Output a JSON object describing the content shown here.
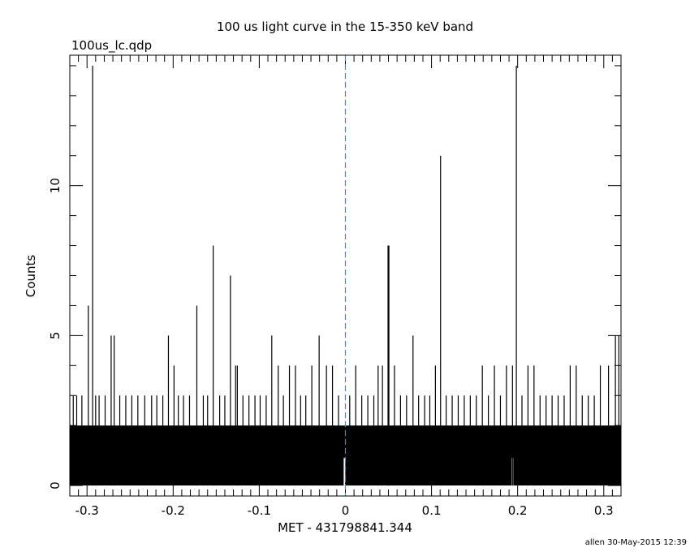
{
  "title": "100 us light curve in the 15-350 keV band",
  "file_label": "100us_lc.qdp",
  "footer": "allen 30-May-2015 12:39",
  "colors": {
    "axes": "#000000",
    "data": "#000000",
    "trigger_line": "#3a8fb8"
  },
  "chart_data": {
    "type": "bar",
    "xlabel": "MET - 431798841.344",
    "ylabel": "Counts",
    "xlim": [
      -0.32,
      0.32
    ],
    "ylim": [
      -0.35,
      14.35
    ],
    "x_ticks": [
      {
        "v": -0.3,
        "label": "-0.3"
      },
      {
        "v": -0.2,
        "label": "-0.2"
      },
      {
        "v": -0.1,
        "label": "-0.1"
      },
      {
        "v": 0,
        "label": "0"
      },
      {
        "v": 0.1,
        "label": "0.1"
      },
      {
        "v": 0.2,
        "label": "0.2"
      },
      {
        "v": 0.3,
        "label": "0.3"
      }
    ],
    "y_ticks": [
      {
        "v": 0,
        "label": "0"
      },
      {
        "v": 5,
        "label": "5"
      },
      {
        "v": 10,
        "label": "10"
      }
    ],
    "trigger_x": 0,
    "bin_width": 0.0001,
    "background_level": 2,
    "gaps_to_zero": [
      -0.002,
      0.193
    ],
    "peaks": [
      {
        "x": -0.2985,
        "y": 6
      },
      {
        "x": -0.2935,
        "y": 14
      },
      {
        "x": -0.272,
        "y": 5
      },
      {
        "x": -0.2685,
        "y": 5
      },
      {
        "x": -0.2055,
        "y": 5
      },
      {
        "x": -0.1725,
        "y": 6
      },
      {
        "x": -0.1535,
        "y": 8
      },
      {
        "x": -0.1335,
        "y": 7
      },
      {
        "x": -0.1275,
        "y": 4
      },
      {
        "x": -0.1255,
        "y": 4
      },
      {
        "x": -0.0855,
        "y": 5
      },
      {
        "x": -0.0305,
        "y": 5
      },
      {
        "x": 0.0495,
        "y": 8
      },
      {
        "x": 0.0505,
        "y": 8
      },
      {
        "x": 0.0785,
        "y": 5
      },
      {
        "x": 0.1045,
        "y": 4
      },
      {
        "x": 0.1105,
        "y": 11
      },
      {
        "x": 0.1985,
        "y": 14
      },
      {
        "x": 0.3055,
        "y": 4
      },
      {
        "x": 0.3135,
        "y": 5
      },
      {
        "x": 0.3175,
        "y": 5
      },
      {
        "x": -0.316,
        "y": 3
      },
      {
        "x": -0.312,
        "y": 3
      },
      {
        "x": -0.306,
        "y": 3
      },
      {
        "x": -0.29,
        "y": 3
      },
      {
        "x": -0.286,
        "y": 3
      },
      {
        "x": -0.279,
        "y": 3
      },
      {
        "x": -0.262,
        "y": 3
      },
      {
        "x": -0.255,
        "y": 3
      },
      {
        "x": -0.248,
        "y": 3
      },
      {
        "x": -0.241,
        "y": 3
      },
      {
        "x": -0.233,
        "y": 3
      },
      {
        "x": -0.225,
        "y": 3
      },
      {
        "x": -0.219,
        "y": 3
      },
      {
        "x": -0.212,
        "y": 3
      },
      {
        "x": -0.199,
        "y": 4
      },
      {
        "x": -0.194,
        "y": 3
      },
      {
        "x": -0.188,
        "y": 3
      },
      {
        "x": -0.181,
        "y": 3
      },
      {
        "x": -0.165,
        "y": 3
      },
      {
        "x": -0.16,
        "y": 3
      },
      {
        "x": -0.146,
        "y": 3
      },
      {
        "x": -0.14,
        "y": 3
      },
      {
        "x": -0.119,
        "y": 3
      },
      {
        "x": -0.112,
        "y": 3
      },
      {
        "x": -0.105,
        "y": 3
      },
      {
        "x": -0.099,
        "y": 3
      },
      {
        "x": -0.092,
        "y": 3
      },
      {
        "x": -0.078,
        "y": 4
      },
      {
        "x": -0.072,
        "y": 3
      },
      {
        "x": -0.065,
        "y": 4
      },
      {
        "x": -0.058,
        "y": 4
      },
      {
        "x": -0.052,
        "y": 3
      },
      {
        "x": -0.046,
        "y": 3
      },
      {
        "x": -0.039,
        "y": 4
      },
      {
        "x": -0.022,
        "y": 4
      },
      {
        "x": -0.015,
        "y": 4
      },
      {
        "x": -0.008,
        "y": 3
      },
      {
        "x": 0.005,
        "y": 3
      },
      {
        "x": 0.012,
        "y": 4
      },
      {
        "x": 0.019,
        "y": 3
      },
      {
        "x": 0.026,
        "y": 3
      },
      {
        "x": 0.033,
        "y": 3
      },
      {
        "x": 0.038,
        "y": 4
      },
      {
        "x": 0.043,
        "y": 4
      },
      {
        "x": 0.057,
        "y": 4
      },
      {
        "x": 0.064,
        "y": 3
      },
      {
        "x": 0.071,
        "y": 3
      },
      {
        "x": 0.085,
        "y": 3
      },
      {
        "x": 0.092,
        "y": 3
      },
      {
        "x": 0.098,
        "y": 3
      },
      {
        "x": 0.117,
        "y": 3
      },
      {
        "x": 0.124,
        "y": 3
      },
      {
        "x": 0.131,
        "y": 3
      },
      {
        "x": 0.138,
        "y": 3
      },
      {
        "x": 0.145,
        "y": 3
      },
      {
        "x": 0.152,
        "y": 3
      },
      {
        "x": 0.159,
        "y": 4
      },
      {
        "x": 0.166,
        "y": 3
      },
      {
        "x": 0.173,
        "y": 4
      },
      {
        "x": 0.18,
        "y": 3
      },
      {
        "x": 0.187,
        "y": 4
      },
      {
        "x": 0.194,
        "y": 4
      },
      {
        "x": 0.205,
        "y": 3
      },
      {
        "x": 0.212,
        "y": 4
      },
      {
        "x": 0.219,
        "y": 4
      },
      {
        "x": 0.226,
        "y": 3
      },
      {
        "x": 0.233,
        "y": 3
      },
      {
        "x": 0.24,
        "y": 3
      },
      {
        "x": 0.247,
        "y": 3
      },
      {
        "x": 0.254,
        "y": 3
      },
      {
        "x": 0.261,
        "y": 4
      },
      {
        "x": 0.268,
        "y": 4
      },
      {
        "x": 0.275,
        "y": 3
      },
      {
        "x": 0.282,
        "y": 3
      },
      {
        "x": 0.289,
        "y": 3
      },
      {
        "x": 0.296,
        "y": 4
      }
    ]
  }
}
